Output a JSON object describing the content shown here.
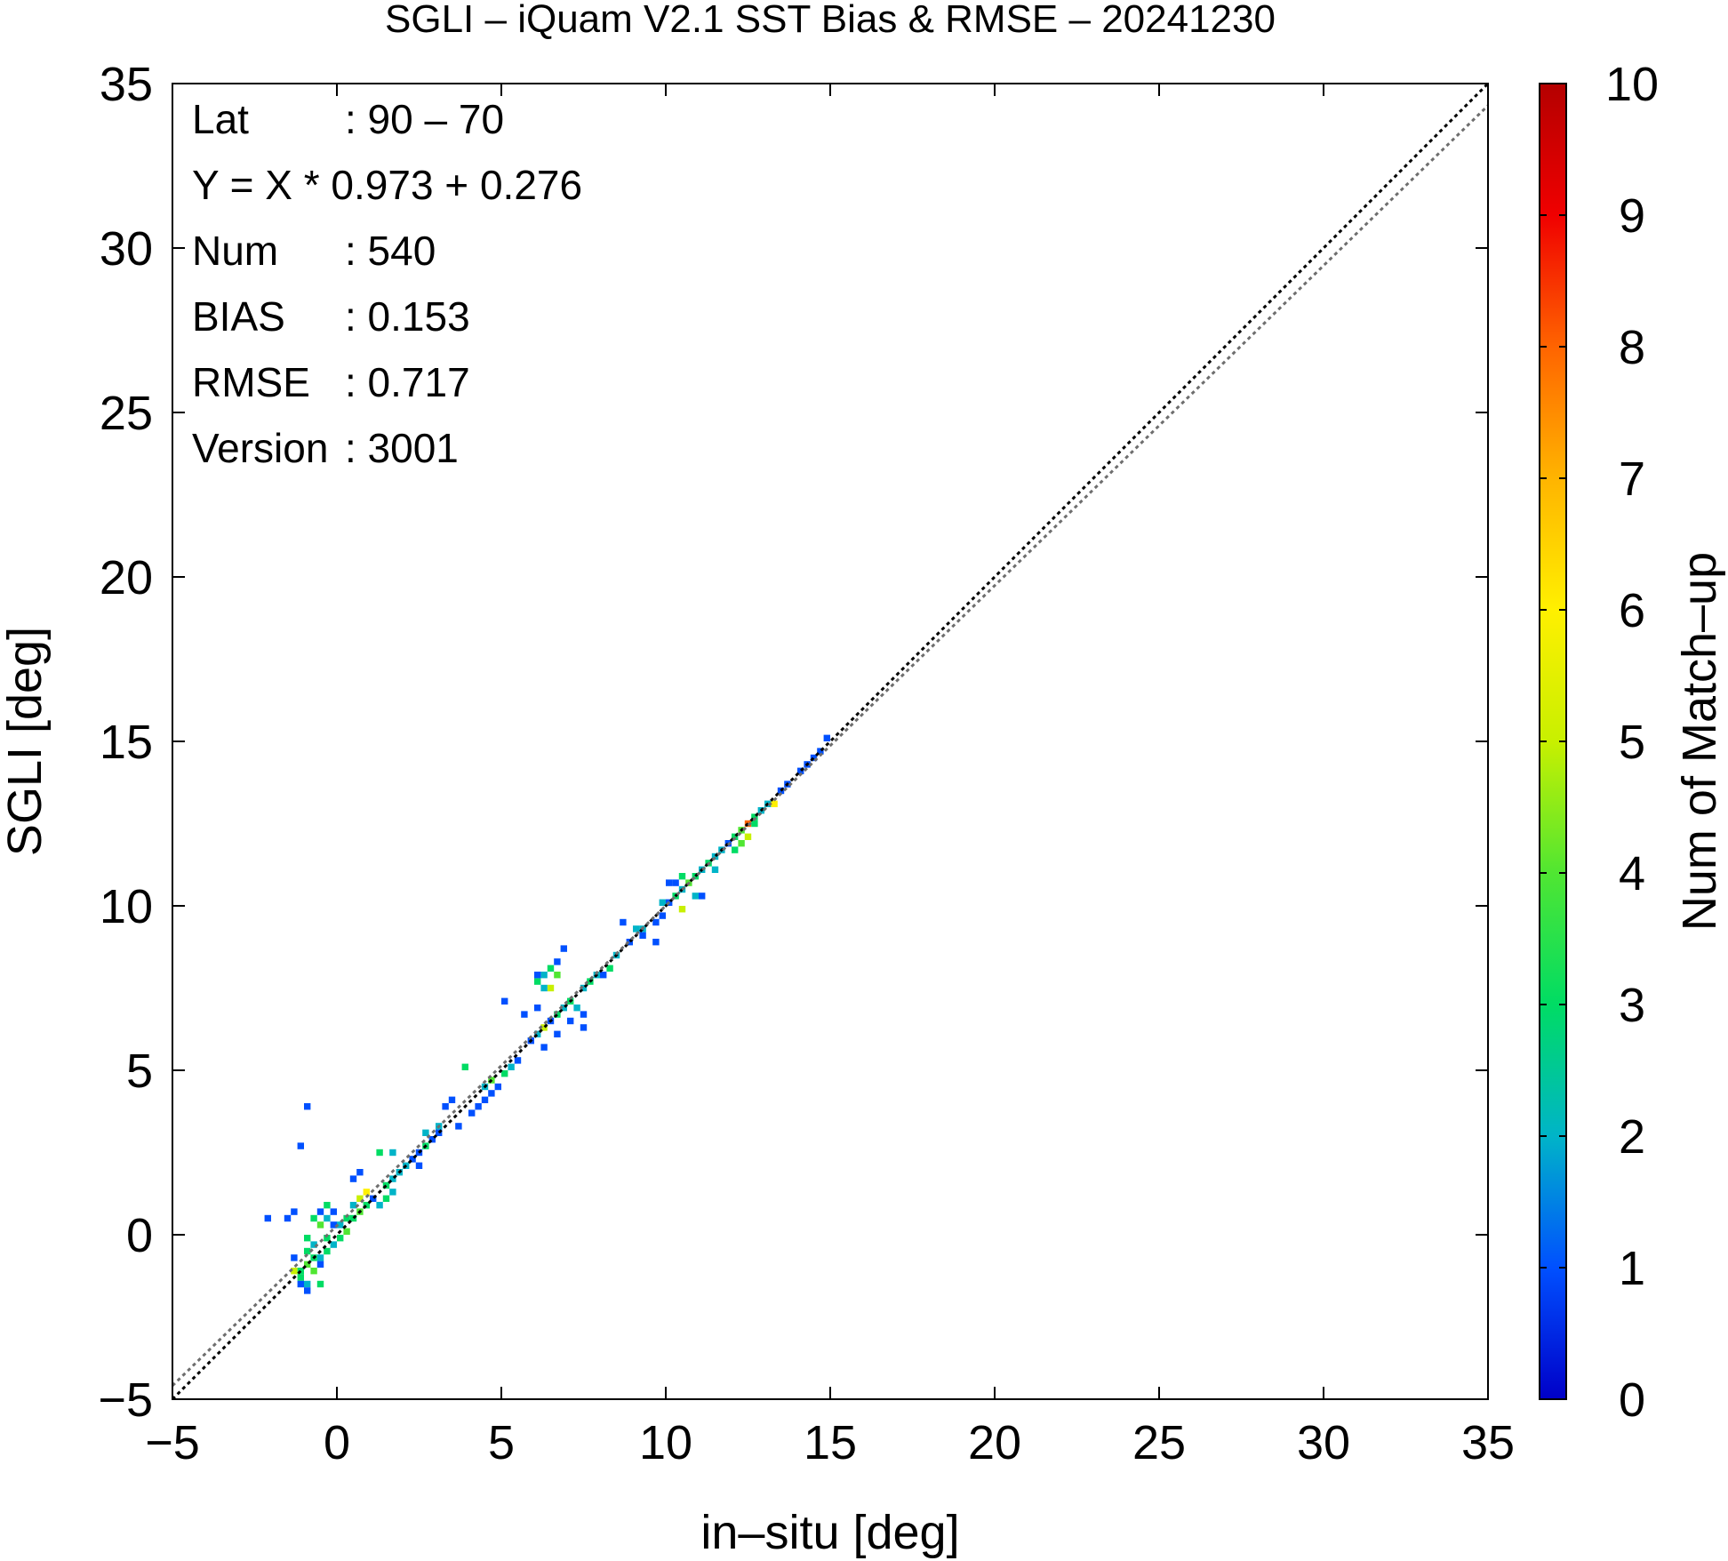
{
  "chart_data": {
    "type": "heatmap",
    "title": "SGLI – iQuam V2.1 SST Bias & RMSE  – 20241230",
    "xlabel": "in–situ [deg]",
    "ylabel": "SGLI [deg]",
    "xlim": [
      -5,
      35
    ],
    "ylim": [
      -5,
      35
    ],
    "x_ticks": [
      -5,
      0,
      5,
      10,
      15,
      20,
      25,
      30,
      35
    ],
    "y_ticks": [
      -5,
      0,
      5,
      10,
      15,
      20,
      25,
      30,
      35
    ],
    "x_tick_labels": [
      "−5",
      "0",
      "5",
      "10",
      "15",
      "20",
      "25",
      "30",
      "35"
    ],
    "y_tick_labels": [
      "−5",
      "0",
      "5",
      "10",
      "15",
      "20",
      "25",
      "30",
      "35"
    ],
    "grid": false,
    "stats": [
      {
        "key": "Lat",
        "value": ": 90 – 70"
      },
      {
        "key": "Y = X * 0.973 + 0.276",
        "value": ""
      },
      {
        "key": "Num",
        "value": ": 540"
      },
      {
        "key": "BIAS",
        "value": ": 0.153"
      },
      {
        "key": "RMSE",
        "value": ": 0.717"
      },
      {
        "key": "Version",
        "value": ": 3001"
      }
    ],
    "lines": [
      {
        "type": "one-to-one",
        "slope": 1.0,
        "intercept": 0.0,
        "color": "#000000",
        "dash": "dotted"
      },
      {
        "type": "regression",
        "slope": 0.973,
        "intercept": 0.276,
        "color": "#6e6e6e",
        "dash": "dotted"
      }
    ],
    "colorbar": {
      "label": "Num of Match–up",
      "min": 0,
      "max": 10,
      "ticks": [
        0,
        1,
        2,
        3,
        4,
        5,
        6,
        7,
        8,
        9,
        10
      ],
      "colors": [
        "#0000c8",
        "#0050ff",
        "#00b4c8",
        "#00dc64",
        "#50e632",
        "#c8f000",
        "#fff000",
        "#ffb400",
        "#ff6400",
        "#f00000",
        "#b40000"
      ]
    },
    "bin_size": 0.2,
    "points": [
      [
        -1.2,
        -1.2,
        3
      ],
      [
        -1.0,
        -1.0,
        4
      ],
      [
        -0.8,
        -0.8,
        3
      ],
      [
        -1.4,
        -1.2,
        5
      ],
      [
        -1.2,
        -1.4,
        3
      ],
      [
        -1.0,
        -1.6,
        2
      ],
      [
        -0.8,
        -1.2,
        4
      ],
      [
        -0.6,
        -0.8,
        2
      ],
      [
        -0.4,
        -0.6,
        3
      ],
      [
        -0.6,
        -1.0,
        1
      ],
      [
        -1.0,
        -0.6,
        3
      ],
      [
        -0.8,
        -0.4,
        2
      ],
      [
        -1.0,
        -0.2,
        3
      ],
      [
        -0.6,
        0.2,
        4
      ],
      [
        -0.8,
        0.4,
        3
      ],
      [
        -0.4,
        0.4,
        2
      ],
      [
        -0.2,
        0.2,
        1
      ],
      [
        -0.4,
        -0.2,
        3
      ],
      [
        -0.2,
        -0.4,
        2
      ],
      [
        0.0,
        -0.2,
        3
      ],
      [
        0.2,
        0.0,
        4
      ],
      [
        0.0,
        0.2,
        2
      ],
      [
        0.2,
        0.4,
        3
      ],
      [
        -0.4,
        0.8,
        3
      ],
      [
        -0.6,
        0.6,
        1
      ],
      [
        -0.2,
        0.6,
        1
      ],
      [
        -1.4,
        -0.8,
        1
      ],
      [
        -1.6,
        0.4,
        1
      ],
      [
        -2.2,
        0.4,
        1
      ],
      [
        -1.0,
        -1.8,
        1
      ],
      [
        -0.6,
        -1.6,
        3
      ],
      [
        -1.4,
        0.6,
        1
      ],
      [
        -1.2,
        -1.6,
        1
      ],
      [
        0.4,
        0.4,
        3
      ],
      [
        0.4,
        0.8,
        2
      ],
      [
        0.6,
        0.6,
        4
      ],
      [
        0.6,
        1.0,
        5
      ],
      [
        0.8,
        0.8,
        3
      ],
      [
        1.0,
        1.0,
        1
      ],
      [
        1.2,
        0.8,
        2
      ],
      [
        1.4,
        1.0,
        3
      ],
      [
        1.6,
        1.2,
        2
      ],
      [
        1.4,
        1.4,
        3
      ],
      [
        1.6,
        1.6,
        2
      ],
      [
        0.8,
        1.2,
        6
      ],
      [
        0.4,
        1.6,
        1
      ],
      [
        1.2,
        2.4,
        3
      ],
      [
        1.6,
        2.4,
        2
      ],
      [
        2.0,
        2.0,
        2
      ],
      [
        2.2,
        2.2,
        1
      ],
      [
        2.4,
        2.4,
        1
      ],
      [
        2.6,
        2.6,
        3
      ],
      [
        2.4,
        2.0,
        1
      ],
      [
        1.8,
        1.8,
        2
      ],
      [
        2.6,
        3.0,
        2
      ],
      [
        2.8,
        2.8,
        1
      ],
      [
        3.0,
        3.2,
        2
      ],
      [
        3.2,
        3.8,
        1
      ],
      [
        3.4,
        4.0,
        1
      ],
      [
        3.0,
        3.0,
        1
      ],
      [
        3.6,
        3.2,
        1
      ],
      [
        4.0,
        3.6,
        1
      ],
      [
        4.4,
        4.0,
        1
      ],
      [
        4.4,
        4.4,
        2
      ],
      [
        4.6,
        4.6,
        4
      ],
      [
        4.8,
        4.4,
        1
      ],
      [
        5.0,
        4.8,
        3
      ],
      [
        5.2,
        5.0,
        2
      ],
      [
        5.4,
        5.2,
        1
      ],
      [
        4.6,
        4.2,
        1
      ],
      [
        4.2,
        3.8,
        1
      ],
      [
        3.8,
        5.0,
        3
      ],
      [
        -1.0,
        3.8,
        1
      ],
      [
        -1.2,
        2.6,
        1
      ],
      [
        0.6,
        1.8,
        1
      ],
      [
        5.0,
        7.0,
        1
      ],
      [
        5.6,
        6.6,
        1
      ],
      [
        6.0,
        6.0,
        2
      ],
      [
        6.2,
        6.2,
        5
      ],
      [
        6.0,
        6.8,
        1
      ],
      [
        6.4,
        6.4,
        1
      ],
      [
        6.6,
        6.6,
        3
      ],
      [
        6.2,
        5.6,
        1
      ],
      [
        5.8,
        5.8,
        1
      ],
      [
        6.6,
        6.0,
        1
      ],
      [
        6.8,
        6.8,
        2
      ],
      [
        7.0,
        6.4,
        1
      ],
      [
        7.2,
        6.8,
        2
      ],
      [
        7.4,
        6.6,
        1
      ],
      [
        7.4,
        6.2,
        1
      ],
      [
        6.0,
        7.6,
        3
      ],
      [
        6.2,
        7.8,
        2
      ],
      [
        6.4,
        7.4,
        5
      ],
      [
        6.6,
        7.8,
        4
      ],
      [
        6.4,
        8.0,
        3
      ],
      [
        6.2,
        7.4,
        2
      ],
      [
        6.6,
        8.2,
        1
      ],
      [
        6.0,
        7.8,
        1
      ],
      [
        6.8,
        8.6,
        1
      ],
      [
        7.0,
        7.0,
        3
      ],
      [
        7.4,
        7.4,
        2
      ],
      [
        7.6,
        7.6,
        3
      ],
      [
        7.8,
        7.8,
        2
      ],
      [
        8.0,
        7.8,
        1
      ],
      [
        8.2,
        8.0,
        3
      ],
      [
        8.4,
        8.4,
        2
      ],
      [
        8.8,
        8.8,
        1
      ],
      [
        9.0,
        9.2,
        2
      ],
      [
        9.2,
        9.2,
        2
      ],
      [
        9.6,
        9.4,
        1
      ],
      [
        9.8,
        9.6,
        1
      ],
      [
        9.8,
        10.0,
        2
      ],
      [
        10.0,
        10.0,
        1
      ],
      [
        10.2,
        10.2,
        3
      ],
      [
        10.4,
        10.4,
        2
      ],
      [
        10.2,
        10.6,
        1
      ],
      [
        10.4,
        10.8,
        3
      ],
      [
        10.6,
        10.6,
        4
      ],
      [
        10.8,
        10.8,
        3
      ],
      [
        11.0,
        11.0,
        2
      ],
      [
        11.2,
        11.2,
        3
      ],
      [
        11.4,
        11.4,
        2
      ],
      [
        10.0,
        10.6,
        1
      ],
      [
        10.4,
        9.8,
        5
      ],
      [
        10.8,
        10.2,
        2
      ],
      [
        11.0,
        10.2,
        1
      ],
      [
        9.6,
        8.8,
        1
      ],
      [
        9.2,
        9.0,
        1
      ],
      [
        8.6,
        9.4,
        1
      ],
      [
        11.6,
        11.6,
        2
      ],
      [
        11.8,
        11.8,
        1
      ],
      [
        12.0,
        12.0,
        3
      ],
      [
        12.2,
        12.2,
        4
      ],
      [
        12.4,
        12.4,
        8
      ],
      [
        12.6,
        12.6,
        3
      ],
      [
        12.8,
        12.8,
        2
      ],
      [
        12.6,
        12.4,
        3
      ],
      [
        12.4,
        12.0,
        5
      ],
      [
        12.2,
        11.8,
        4
      ],
      [
        13.0,
        13.0,
        2
      ],
      [
        13.2,
        13.0,
        6
      ],
      [
        13.4,
        13.4,
        1
      ],
      [
        12.0,
        11.6,
        3
      ],
      [
        11.4,
        11.0,
        2
      ],
      [
        13.6,
        13.6,
        1
      ],
      [
        14.0,
        14.0,
        1
      ],
      [
        14.2,
        14.2,
        1
      ],
      [
        14.6,
        14.6,
        1
      ],
      [
        14.8,
        15.0,
        1
      ],
      [
        14.4,
        14.4,
        1
      ]
    ]
  }
}
